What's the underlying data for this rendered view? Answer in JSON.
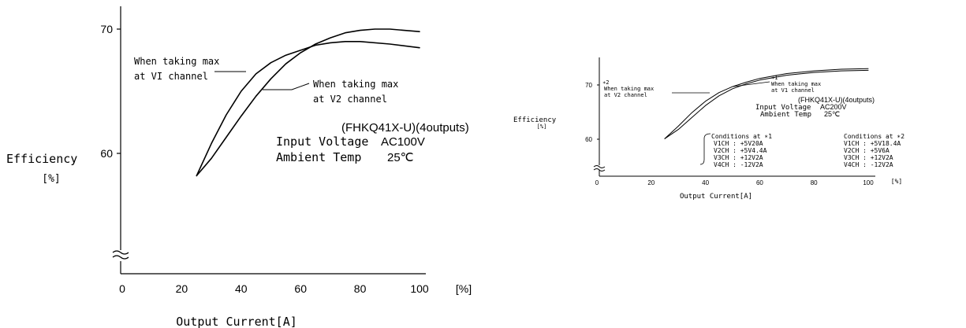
{
  "chart_data": [
    {
      "type": "line",
      "title": "(FHKQ41X-U)(4outputs)",
      "ylabel": "Efficiency",
      "ylabel_unit": "[%]",
      "xlabel": "Output Current[A]",
      "x_unit": "[%]",
      "xlim": [
        0,
        100
      ],
      "ylim": [
        50,
        71
      ],
      "x_ticks": [
        "0",
        "20",
        "40",
        "60",
        "80",
        "100"
      ],
      "y_ticks": [
        "60",
        "70"
      ],
      "axis_break": true,
      "info": {
        "line1_label": "Input Voltage",
        "line1_value": "AC100V",
        "line2_label": "Ambient Temp",
        "line2_value": "25℃"
      },
      "series": [
        {
          "name": "When taking max at V1 channel",
          "label_lines": [
            "When taking max",
            "at VI channel"
          ],
          "x": [
            25,
            30,
            35,
            40,
            45,
            50,
            55,
            60,
            65,
            70,
            75,
            80,
            90,
            100
          ],
          "y": [
            58.2,
            60.8,
            63.1,
            65.0,
            66.4,
            67.3,
            67.9,
            68.3,
            68.7,
            68.9,
            69.0,
            69.0,
            68.8,
            68.5
          ]
        },
        {
          "name": "When taking max at V2 channel",
          "label_lines": [
            "When taking max",
            "at V2 channel"
          ],
          "x": [
            25,
            30,
            35,
            40,
            45,
            50,
            55,
            60,
            65,
            70,
            75,
            80,
            85,
            90,
            100
          ],
          "y": [
            58.2,
            59.6,
            61.3,
            63.0,
            64.6,
            66.0,
            67.2,
            68.1,
            68.8,
            69.3,
            69.7,
            69.9,
            70.0,
            70.0,
            69.8
          ]
        }
      ]
    },
    {
      "type": "line",
      "title": "(FHKQ41X-U)(4outputs)",
      "ylabel": "Efficiency",
      "ylabel_unit": "[%]",
      "xlabel": "Output Current[A]",
      "x_unit": "[%]",
      "xlim": [
        0,
        100
      ],
      "ylim": [
        56,
        73
      ],
      "x_ticks": [
        "0",
        "20",
        "40",
        "60",
        "80",
        "100"
      ],
      "y_ticks": [
        "60",
        "70"
      ],
      "axis_break": true,
      "info": {
        "line1_label": "Input Voltage",
        "line1_value": "AC200V",
        "line2_label": "Ambient Temp",
        "line2_value": "25℃"
      },
      "conditions": [
        {
          "title": "Conditions at ∗1",
          "rows": [
            "V1CH : +5V20A",
            "V2CH : +5V4.4A",
            "V3CH : +12V2A",
            "V4CH : -12V2A"
          ]
        },
        {
          "title": "Conditions at ∗2",
          "rows": [
            "V1CH : +5V18.4A",
            "V2CH : +5V6A",
            "V3CH : +12V2A",
            "V4CH : -12V2A"
          ]
        }
      ],
      "series": [
        {
          "name": "∗1 When taking max at V1 channel",
          "marker": "∗1",
          "label_lines": [
            "When taking max",
            "at V1 channel"
          ],
          "x": [
            25,
            30,
            35,
            40,
            45,
            50,
            55,
            60,
            70,
            80,
            90,
            100
          ],
          "y": [
            60.1,
            62.4,
            64.9,
            67.0,
            68.6,
            69.7,
            70.5,
            71.2,
            72.1,
            72.6,
            72.9,
            73.0
          ]
        },
        {
          "name": "∗2 When taking max at V2 channel",
          "marker": "∗2",
          "label_lines": [
            "When taking max",
            "at V2 channel"
          ],
          "x": [
            25,
            30,
            35,
            40,
            45,
            50,
            55,
            60,
            70,
            80,
            90,
            100
          ],
          "y": [
            60.1,
            61.8,
            64.0,
            66.2,
            68.0,
            69.3,
            70.2,
            70.9,
            71.8,
            72.3,
            72.6,
            72.7
          ]
        }
      ]
    }
  ]
}
